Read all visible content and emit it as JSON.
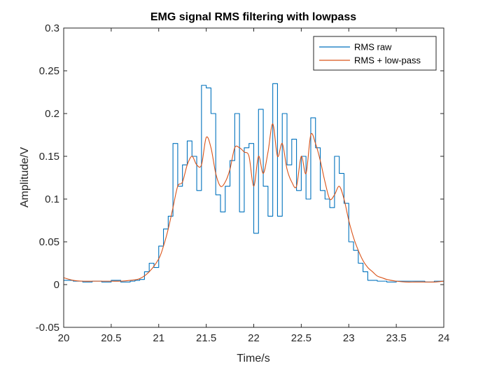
{
  "chart_data": {
    "type": "line",
    "title": "EMG signal RMS filtering with lowpass",
    "xlabel": "Time/s",
    "ylabel": "Amplitude/V",
    "xlim": [
      20,
      24
    ],
    "ylim": [
      -0.05,
      0.3
    ],
    "xticks": [
      20,
      20.5,
      21,
      21.5,
      22,
      22.5,
      23,
      23.5,
      24
    ],
    "xtick_labels": [
      "20",
      "20.5",
      "21",
      "21.5",
      "22",
      "22.5",
      "23",
      "23.5",
      "24"
    ],
    "yticks": [
      -0.05,
      0,
      0.05,
      0.1,
      0.15,
      0.2,
      0.25,
      0.3
    ],
    "ytick_labels": [
      "-0.05",
      "0",
      "0.05",
      "0.1",
      "0.15",
      "0.2",
      "0.25",
      "0.3"
    ],
    "grid": false,
    "legend_position": "top-right",
    "series": [
      {
        "name": "RMS raw",
        "color": "#0072BD",
        "style": "step",
        "x": [
          20.0,
          20.1,
          20.2,
          20.3,
          20.4,
          20.5,
          20.6,
          20.7,
          20.75,
          20.8,
          20.85,
          20.9,
          20.95,
          21.0,
          21.05,
          21.1,
          21.15,
          21.2,
          21.25,
          21.3,
          21.35,
          21.4,
          21.45,
          21.5,
          21.55,
          21.6,
          21.65,
          21.7,
          21.75,
          21.8,
          21.85,
          21.9,
          21.95,
          22.0,
          22.05,
          22.1,
          22.15,
          22.2,
          22.25,
          22.3,
          22.35,
          22.4,
          22.45,
          22.5,
          22.55,
          22.6,
          22.65,
          22.7,
          22.75,
          22.8,
          22.85,
          22.9,
          22.95,
          23.0,
          23.05,
          23.1,
          23.15,
          23.2,
          23.25,
          23.3,
          23.4,
          23.5,
          23.6,
          23.7,
          23.8,
          23.9,
          24.0
        ],
        "y": [
          0.005,
          0.004,
          0.003,
          0.004,
          0.003,
          0.005,
          0.003,
          0.004,
          0.005,
          0.006,
          0.015,
          0.025,
          0.02,
          0.045,
          0.065,
          0.08,
          0.165,
          0.115,
          0.14,
          0.168,
          0.15,
          0.11,
          0.233,
          0.23,
          0.2,
          0.105,
          0.085,
          0.115,
          0.145,
          0.2,
          0.085,
          0.16,
          0.165,
          0.06,
          0.205,
          0.115,
          0.08,
          0.235,
          0.08,
          0.2,
          0.14,
          0.17,
          0.11,
          0.15,
          0.1,
          0.195,
          0.16,
          0.11,
          0.1,
          0.09,
          0.15,
          0.13,
          0.095,
          0.05,
          0.04,
          0.025,
          0.015,
          0.005,
          0.005,
          0.004,
          0.003,
          0.004,
          0.004,
          0.004,
          0.003,
          0.004,
          0.004
        ]
      },
      {
        "name": "RMS + low-pass",
        "color": "#D95319",
        "style": "smooth",
        "x": [
          20.0,
          20.1,
          20.2,
          20.3,
          20.4,
          20.5,
          20.6,
          20.7,
          20.8,
          20.9,
          21.0,
          21.05,
          21.1,
          21.15,
          21.2,
          21.25,
          21.3,
          21.35,
          21.4,
          21.45,
          21.5,
          21.55,
          21.6,
          21.65,
          21.7,
          21.75,
          21.8,
          21.85,
          21.9,
          21.95,
          22.0,
          22.05,
          22.1,
          22.15,
          22.2,
          22.25,
          22.3,
          22.35,
          22.4,
          22.45,
          22.5,
          22.55,
          22.6,
          22.65,
          22.7,
          22.75,
          22.8,
          22.85,
          22.9,
          22.95,
          23.0,
          23.05,
          23.1,
          23.15,
          23.2,
          23.25,
          23.3,
          23.35,
          23.4,
          23.5,
          23.6,
          23.7,
          23.8,
          23.9,
          24.0
        ],
        "y": [
          0.008,
          0.005,
          0.004,
          0.004,
          0.004,
          0.004,
          0.004,
          0.005,
          0.007,
          0.015,
          0.03,
          0.045,
          0.065,
          0.09,
          0.115,
          0.12,
          0.14,
          0.15,
          0.14,
          0.14,
          0.172,
          0.16,
          0.13,
          0.115,
          0.12,
          0.135,
          0.16,
          0.16,
          0.155,
          0.15,
          0.115,
          0.15,
          0.13,
          0.155,
          0.188,
          0.15,
          0.165,
          0.135,
          0.12,
          0.115,
          0.15,
          0.13,
          0.175,
          0.165,
          0.145,
          0.12,
          0.1,
          0.105,
          0.115,
          0.1,
          0.075,
          0.055,
          0.04,
          0.028,
          0.02,
          0.015,
          0.01,
          0.008,
          0.006,
          0.004,
          0.003,
          0.003,
          0.003,
          0.003,
          0.004
        ]
      }
    ]
  }
}
